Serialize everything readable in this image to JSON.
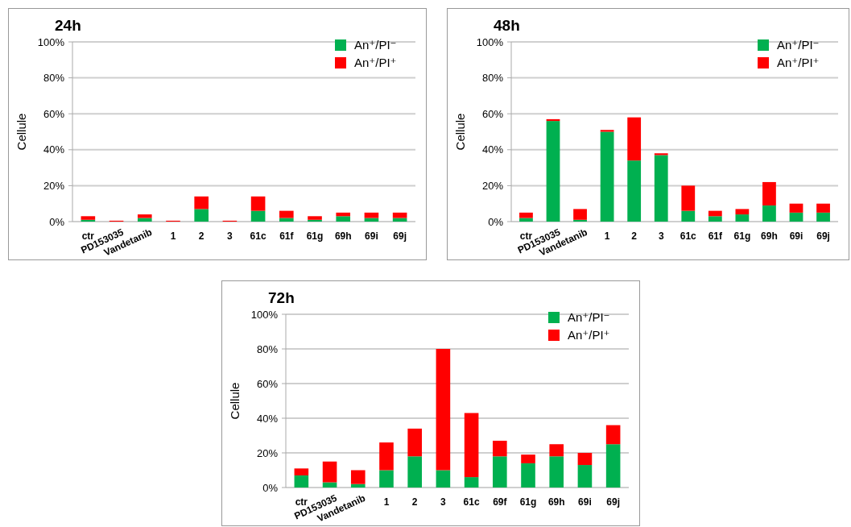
{
  "chart_data": [
    {
      "type": "bar",
      "title": "24h",
      "ylabel": "Cellule",
      "stacked": true,
      "grid": "y",
      "legend": "top right",
      "ylim": [
        0,
        100
      ],
      "yticks": [
        {
          "value": 0,
          "label": "0%"
        },
        {
          "value": 20,
          "label": "20%"
        },
        {
          "value": 40,
          "label": "40%"
        },
        {
          "value": 60,
          "label": "60%"
        },
        {
          "value": 80,
          "label": "80%"
        },
        {
          "value": 100,
          "label": "100%"
        }
      ],
      "categories": [
        "ctr",
        "PD153035",
        "Vandetanib",
        "1",
        "2",
        "3",
        "61c",
        "61f",
        "61g",
        "69h",
        "69i",
        "69j"
      ],
      "series": [
        {
          "name": "An⁺/PI⁻",
          "color": "#00b050",
          "values": [
            1,
            0,
            2,
            0,
            7,
            0,
            6,
            2,
            1,
            3,
            2,
            2
          ]
        },
        {
          "name": "An⁺/PI⁺",
          "color": "#ff0000",
          "values": [
            2,
            0.5,
            2,
            0.5,
            7,
            0.5,
            8,
            4,
            2,
            2,
            3,
            3
          ]
        }
      ]
    },
    {
      "type": "bar",
      "title": "48h",
      "ylabel": "Cellule",
      "stacked": true,
      "grid": "y",
      "legend": "top right",
      "ylim": [
        0,
        100
      ],
      "yticks": [
        {
          "value": 0,
          "label": "0%"
        },
        {
          "value": 20,
          "label": "20%"
        },
        {
          "value": 40,
          "label": "40%"
        },
        {
          "value": 60,
          "label": "60%"
        },
        {
          "value": 80,
          "label": "80%"
        },
        {
          "value": 100,
          "label": "100%"
        }
      ],
      "categories": [
        "ctr",
        "PD153035",
        "Vandetanib",
        "1",
        "2",
        "3",
        "61c",
        "61f",
        "61g",
        "69h",
        "69i",
        "69j"
      ],
      "series": [
        {
          "name": "An⁺/PI⁻",
          "color": "#00b050",
          "values": [
            2,
            56,
            1,
            50,
            34,
            37,
            6,
            3,
            4,
            9,
            5,
            5
          ]
        },
        {
          "name": "An⁺/PI⁺",
          "color": "#ff0000",
          "values": [
            3,
            1,
            6,
            1,
            24,
            1,
            14,
            3,
            3,
            13,
            5,
            5
          ]
        }
      ]
    },
    {
      "type": "bar",
      "title": "72h",
      "ylabel": "Cellule",
      "stacked": true,
      "grid": "y",
      "legend": "top right",
      "ylim": [
        0,
        100
      ],
      "yticks": [
        {
          "value": 0,
          "label": "0%"
        },
        {
          "value": 20,
          "label": "20%"
        },
        {
          "value": 40,
          "label": "40%"
        },
        {
          "value": 60,
          "label": "60%"
        },
        {
          "value": 80,
          "label": "80%"
        },
        {
          "value": 100,
          "label": "100%"
        }
      ],
      "categories": [
        "ctr",
        "PD153035",
        "Vandetanib",
        "1",
        "2",
        "3",
        "61c",
        "69f",
        "61g",
        "69h",
        "69i",
        "69j"
      ],
      "series": [
        {
          "name": "An⁺/PI⁻",
          "color": "#00b050",
          "values": [
            7,
            3,
            2,
            10,
            18,
            10,
            6,
            18,
            14,
            18,
            13,
            25
          ]
        },
        {
          "name": "An⁺/PI⁺",
          "color": "#ff0000",
          "values": [
            4,
            12,
            8,
            16,
            16,
            70,
            37,
            9,
            5,
            7,
            7,
            11
          ]
        }
      ]
    }
  ]
}
